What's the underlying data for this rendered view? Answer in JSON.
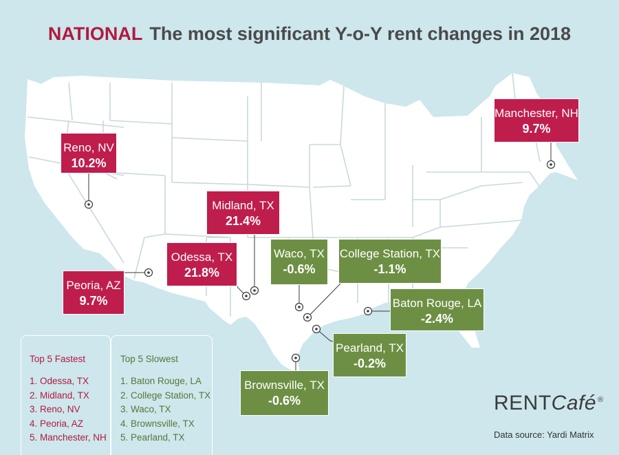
{
  "header": {
    "highlight": "NATIONAL",
    "title": "The most significant Y-o-Y rent changes in 2018"
  },
  "cities": [
    {
      "name": "Reno, NV",
      "value": "10.2%",
      "category": "fastest"
    },
    {
      "name": "Manchester, NH",
      "value": "9.7%",
      "category": "fastest"
    },
    {
      "name": "Midland, TX",
      "value": "21.4%",
      "category": "fastest"
    },
    {
      "name": "Odessa, TX",
      "value": "21.8%",
      "category": "fastest"
    },
    {
      "name": "Peoria, AZ",
      "value": "9.7%",
      "category": "fastest"
    },
    {
      "name": "Waco, TX",
      "value": "-0.6%",
      "category": "slowest"
    },
    {
      "name": "College Station, TX",
      "value": "-1.1%",
      "category": "slowest"
    },
    {
      "name": "Baton Rouge, LA",
      "value": "-2.4%",
      "category": "slowest"
    },
    {
      "name": "Pearland, TX",
      "value": "-0.2%",
      "category": "slowest"
    },
    {
      "name": "Brownsville, TX",
      "value": "-0.6%",
      "category": "slowest"
    }
  ],
  "legend": {
    "fastest": {
      "title": "Top 5 Fastest",
      "items": [
        "1. Odessa, TX",
        "2. Midland, TX",
        "3. Reno, NV",
        "4. Peoria, AZ",
        "5. Manchester, NH"
      ]
    },
    "slowest": {
      "title": "Top 5 Slowest",
      "items": [
        "1. Baton Rouge, LA",
        "2. College Station, TX",
        "3. Waco, TX",
        "4. Brownsville, TX",
        "5. Pearland, TX"
      ]
    }
  },
  "brand": {
    "name_main": "RENT",
    "name_italic": "Café",
    "mark": "®"
  },
  "source": "Data source:  Yardi Matrix",
  "colors": {
    "background": "#cde7ec",
    "land": "#ffffff",
    "borders": "#c8d8dc",
    "fastest": "#bf1d4c",
    "slowest": "#6d8f44",
    "title_accent": "#b3193f"
  }
}
